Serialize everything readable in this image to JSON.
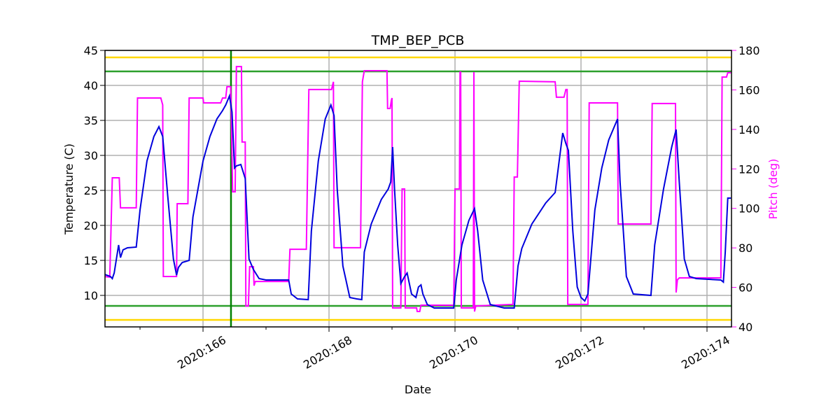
{
  "chart_data": {
    "type": "line",
    "title": "TMP_BEP_PCB",
    "xlabel": "Date",
    "ylabel": "Temperature (C)",
    "y2label": "Pitch (deg)",
    "xlim": [
      164.444,
      174.389
    ],
    "ylim": [
      5.5,
      45
    ],
    "y2lim": [
      40,
      180
    ],
    "xticks": [
      {
        "value": 166,
        "label": "2020:166"
      },
      {
        "value": 168,
        "label": "2020:168"
      },
      {
        "value": 170,
        "label": "2020:170"
      },
      {
        "value": 172,
        "label": "2020:172"
      },
      {
        "value": 174,
        "label": "2020:174"
      }
    ],
    "xminorticks": [
      165,
      167,
      169,
      171,
      173
    ],
    "yticks": [
      10,
      15,
      20,
      25,
      30,
      35,
      40,
      45
    ],
    "y2ticks": [
      40,
      60,
      80,
      100,
      120,
      140,
      160,
      180
    ],
    "y2color": "#ff00ff",
    "grid": true,
    "hlines": [
      {
        "value": 44,
        "color": "#ffd700"
      },
      {
        "value": 6.5,
        "color": "#ffd700"
      },
      {
        "value": 42,
        "color": "#2ca02c"
      },
      {
        "value": 8.5,
        "color": "#2ca02c"
      }
    ],
    "vlines": [
      {
        "value": 166.444,
        "color": "#008000"
      }
    ],
    "series": [
      {
        "name": "Temperature",
        "color": "#0000dd",
        "axis": "y",
        "x": [
          164.44,
          164.53,
          164.56,
          164.59,
          164.66,
          164.69,
          164.73,
          164.8,
          164.94,
          165.0,
          165.11,
          165.22,
          165.3,
          165.36,
          165.44,
          165.53,
          165.58,
          165.61,
          165.67,
          165.78,
          165.84,
          166.0,
          166.11,
          166.22,
          166.31,
          166.36,
          166.42,
          166.46,
          166.5,
          166.53,
          166.6,
          166.67,
          166.73,
          166.8,
          166.89,
          167.0,
          167.36,
          167.4,
          167.5,
          167.67,
          167.72,
          167.83,
          167.94,
          168.03,
          168.08,
          168.13,
          168.22,
          168.33,
          168.44,
          168.52,
          168.56,
          168.67,
          168.83,
          168.94,
          168.98,
          169.01,
          169.04,
          169.09,
          169.14,
          169.2,
          169.24,
          169.31,
          169.38,
          169.42,
          169.46,
          169.49,
          169.56,
          169.67,
          169.98,
          170.02,
          170.11,
          170.22,
          170.31,
          170.36,
          170.44,
          170.56,
          170.78,
          170.94,
          171.0,
          171.06,
          171.22,
          171.44,
          171.59,
          171.71,
          171.76,
          171.8,
          171.87,
          171.94,
          172.0,
          172.06,
          172.11,
          172.22,
          172.33,
          172.44,
          172.58,
          172.62,
          172.72,
          172.83,
          173.11,
          173.17,
          173.31,
          173.44,
          173.51,
          173.56,
          173.64,
          173.72,
          173.83,
          174.22,
          174.26,
          174.29,
          174.33,
          174.38
        ],
        "values": [
          13.0,
          12.7,
          12.4,
          13.2,
          17.2,
          15.4,
          16.5,
          16.8,
          16.9,
          22.2,
          29.2,
          32.7,
          34.1,
          32.7,
          24.2,
          15.2,
          12.9,
          14.0,
          14.7,
          15.0,
          21.2,
          29.2,
          32.7,
          35.2,
          36.4,
          37.2,
          38.5,
          36.2,
          28.2,
          28.5,
          28.7,
          26.7,
          15.2,
          13.7,
          12.4,
          12.2,
          12.2,
          10.2,
          9.5,
          9.4,
          19.2,
          29.2,
          35.2,
          37.2,
          35.7,
          25.2,
          14.2,
          9.7,
          9.5,
          9.4,
          16.2,
          20.2,
          23.7,
          25.2,
          26.2,
          31.2,
          25.2,
          17.2,
          11.7,
          12.7,
          13.2,
          10.2,
          9.7,
          11.2,
          11.5,
          10.2,
          8.7,
          8.2,
          8.2,
          12.2,
          17.2,
          20.7,
          22.4,
          19.2,
          12.2,
          8.7,
          8.2,
          8.2,
          14.2,
          16.7,
          20.2,
          23.2,
          24.7,
          33.2,
          31.7,
          30.7,
          19.2,
          11.2,
          9.7,
          9.2,
          10.2,
          22.2,
          28.2,
          32.2,
          35.2,
          26.2,
          12.7,
          10.2,
          10.0,
          17.2,
          25.2,
          31.2,
          33.7,
          26.2,
          15.2,
          12.7,
          12.4,
          12.2,
          11.9,
          16.2,
          23.9,
          23.9
        ]
      },
      {
        "name": "Pitch",
        "color": "#ff00ff",
        "axis": "y2",
        "x": [
          164.44,
          164.52,
          164.56,
          164.67,
          164.69,
          164.94,
          164.96,
          165.33,
          165.36,
          165.37,
          165.58,
          165.59,
          165.76,
          165.78,
          166.0,
          166.01,
          166.28,
          166.31,
          166.36,
          166.38,
          166.44,
          166.47,
          166.51,
          166.53,
          166.61,
          166.62,
          166.67,
          166.68,
          166.72,
          166.74,
          166.8,
          166.81,
          166.83,
          167.36,
          167.38,
          167.64,
          167.68,
          168.04,
          168.07,
          168.08,
          168.5,
          168.53,
          168.56,
          168.92,
          168.93,
          168.97,
          168.99,
          169.0,
          169.01,
          169.14,
          169.16,
          169.2,
          169.21,
          169.39,
          169.4,
          169.44,
          169.46,
          169.98,
          170.0,
          170.07,
          170.08,
          170.09,
          170.1,
          170.29,
          170.3,
          170.31,
          170.33,
          170.92,
          170.94,
          170.99,
          171.02,
          171.59,
          171.61,
          171.73,
          171.76,
          171.78,
          171.79,
          172.11,
          172.13,
          172.58,
          172.59,
          173.11,
          173.13,
          173.5,
          173.51,
          173.53,
          173.56,
          174.22,
          174.24,
          174.31,
          174.33,
          174.38
        ],
        "values": [
          65.5,
          65.2,
          115.5,
          115.5,
          100.3,
          100.3,
          155.9,
          155.9,
          152.4,
          65.5,
          65.5,
          102.4,
          102.4,
          155.9,
          155.9,
          153.4,
          153.4,
          155.9,
          155.9,
          161.6,
          161.6,
          108.4,
          108.4,
          171.8,
          171.8,
          133.6,
          133.6,
          50.6,
          50.6,
          70.5,
          70.5,
          60.9,
          63.0,
          63.0,
          79.3,
          79.3,
          160.2,
          160.2,
          164.1,
          80.1,
          80.1,
          164.1,
          169.7,
          169.7,
          150.6,
          150.6,
          154.8,
          155.9,
          49.6,
          49.6,
          109.8,
          109.8,
          49.6,
          49.6,
          47.8,
          47.8,
          51.0,
          51.0,
          109.8,
          109.8,
          169.0,
          169.0,
          49.6,
          49.6,
          169.0,
          47.8,
          50.6,
          51.4,
          115.9,
          115.9,
          164.4,
          164.1,
          156.3,
          156.3,
          160.2,
          160.2,
          51.4,
          51.4,
          153.4,
          153.4,
          92.1,
          92.1,
          153.1,
          153.1,
          57.4,
          63.8,
          64.8,
          64.8,
          166.5,
          166.5,
          168.7,
          168.7
        ]
      }
    ]
  }
}
